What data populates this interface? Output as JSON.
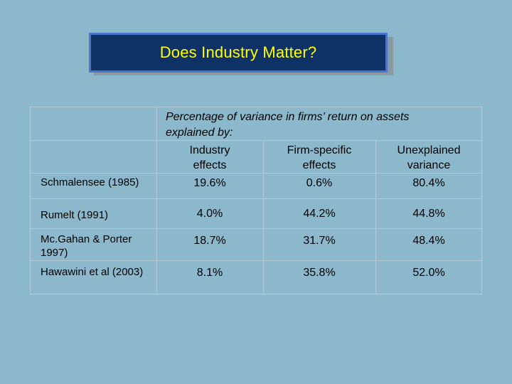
{
  "slide": {
    "title": "Does Industry Matter?"
  },
  "table": {
    "caption_line1": "Percentage of variance in firms’ return on assets",
    "caption_line2": "explained by:",
    "headers": {
      "industry": [
        "Industry",
        "effects"
      ],
      "firm": [
        "Firm-specific",
        "effects"
      ],
      "unexplained": [
        "Unexplained",
        "variance"
      ]
    },
    "rows": [
      {
        "study": "Schmalensee (1985)",
        "industry": "19.6%",
        "firm": "0.6%",
        "unexplained": "80.4%"
      },
      {
        "study": "Rumelt (1991)",
        "industry": "4.0%",
        "firm": "44.2%",
        "unexplained": "44.8%"
      },
      {
        "study": "Mc.Gahan & Porter 1997)",
        "industry": "18.7%",
        "firm": "31.7%",
        "unexplained": "48.4%"
      },
      {
        "study": "Hawawini et al (2003)",
        "industry": "8.1%",
        "firm": "35.8%",
        "unexplained": "52.0%"
      }
    ]
  },
  "colors": {
    "background": "#8cb8cc",
    "title_box": "#0f3266",
    "title_border": "#4a74c9",
    "title_text": "#ffff00",
    "grid": "#b3ccd8"
  }
}
